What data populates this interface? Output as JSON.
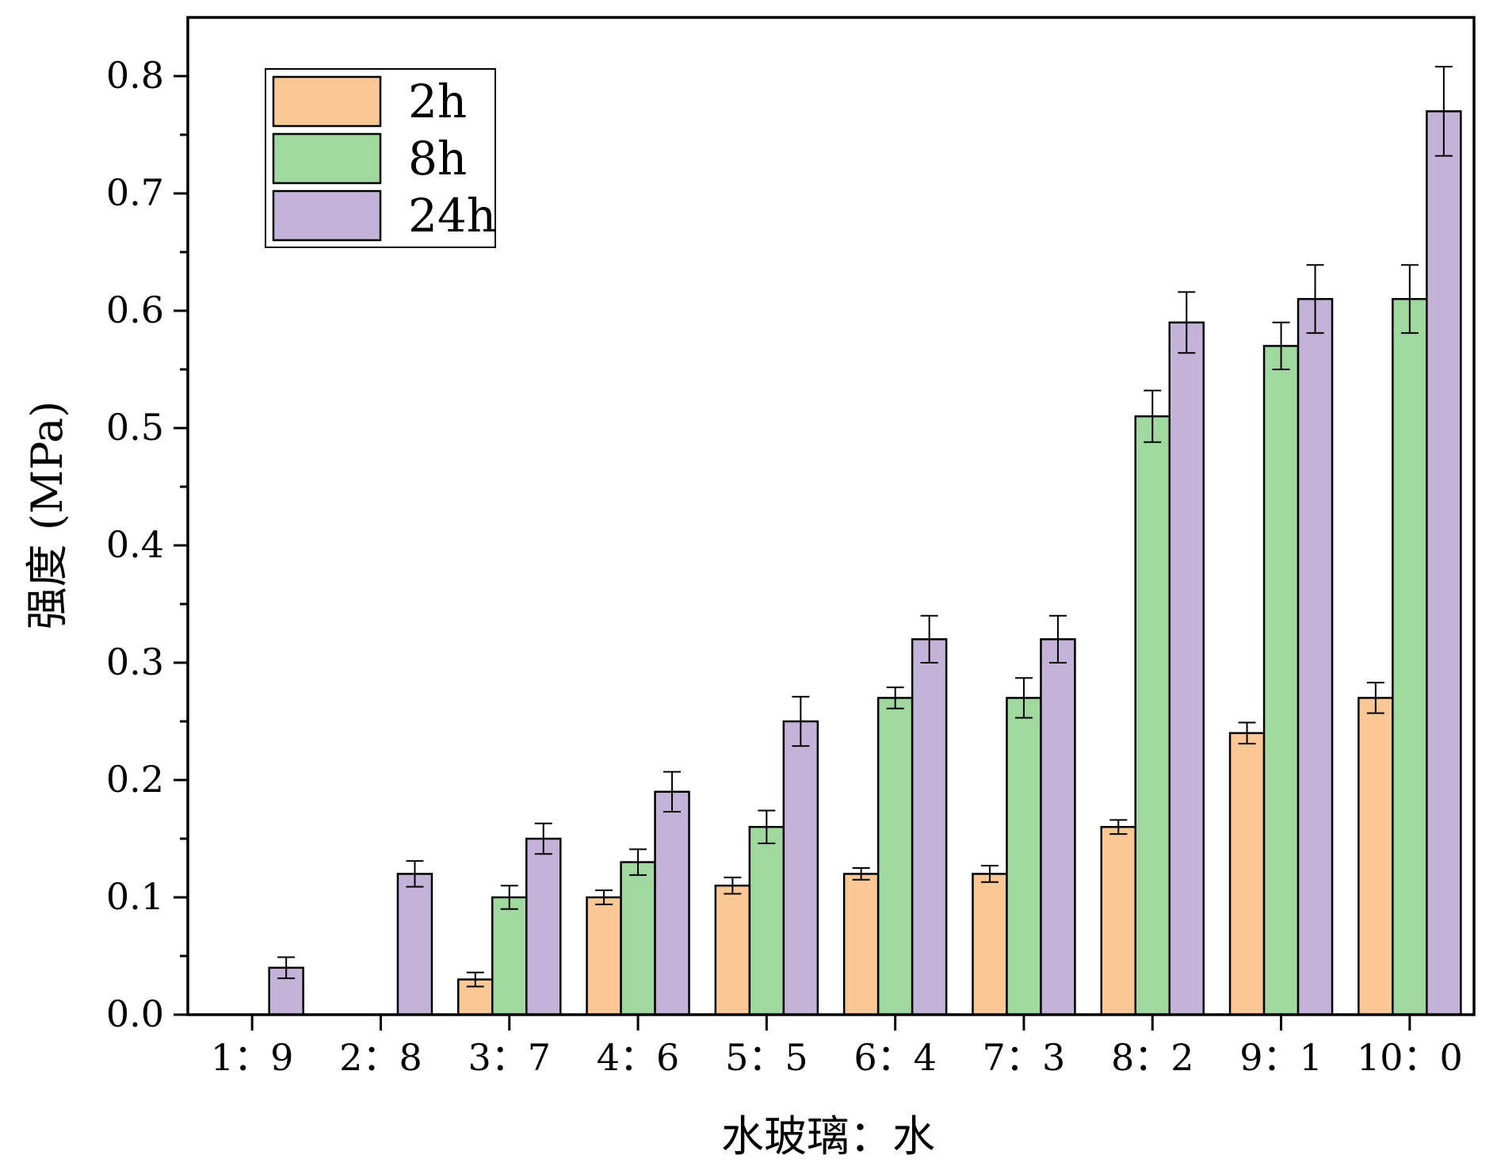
{
  "chart_data": {
    "type": "bar",
    "title": "",
    "xlabel": "水玻璃：水",
    "ylabel": "强度 (MPa)",
    "categories": [
      "1：9",
      "2：8",
      "3：7",
      "4：6",
      "5：5",
      "6：4",
      "7：3",
      "8：2",
      "9：1",
      "10：0"
    ],
    "ylim": [
      0,
      0.85
    ],
    "yticks": [
      "0.0",
      "0.1",
      "0.2",
      "0.3",
      "0.4",
      "0.5",
      "0.6",
      "0.7",
      "0.8"
    ],
    "legend_position": "top-left",
    "series": [
      {
        "name": "2h",
        "color": "#f9c896",
        "values": [
          null,
          null,
          0.03,
          0.1,
          0.11,
          0.12,
          0.12,
          0.16,
          0.24,
          0.27
        ],
        "errors": [
          null,
          null,
          0.006,
          0.006,
          0.007,
          0.005,
          0.007,
          0.006,
          0.009,
          0.013
        ]
      },
      {
        "name": "8h",
        "color": "#a0d8a0",
        "values": [
          null,
          null,
          0.1,
          0.13,
          0.16,
          0.27,
          0.27,
          0.51,
          0.57,
          0.61
        ],
        "errors": [
          null,
          null,
          0.01,
          0.011,
          0.014,
          0.009,
          0.017,
          0.022,
          0.02,
          0.029
        ]
      },
      {
        "name": "24h",
        "color": "#c4b3d9",
        "values": [
          0.04,
          0.12,
          0.15,
          0.19,
          0.25,
          0.32,
          0.32,
          0.59,
          0.61,
          0.77
        ],
        "errors": [
          0.009,
          0.011,
          0.013,
          0.017,
          0.021,
          0.02,
          0.02,
          0.026,
          0.029,
          0.038
        ]
      }
    ]
  }
}
